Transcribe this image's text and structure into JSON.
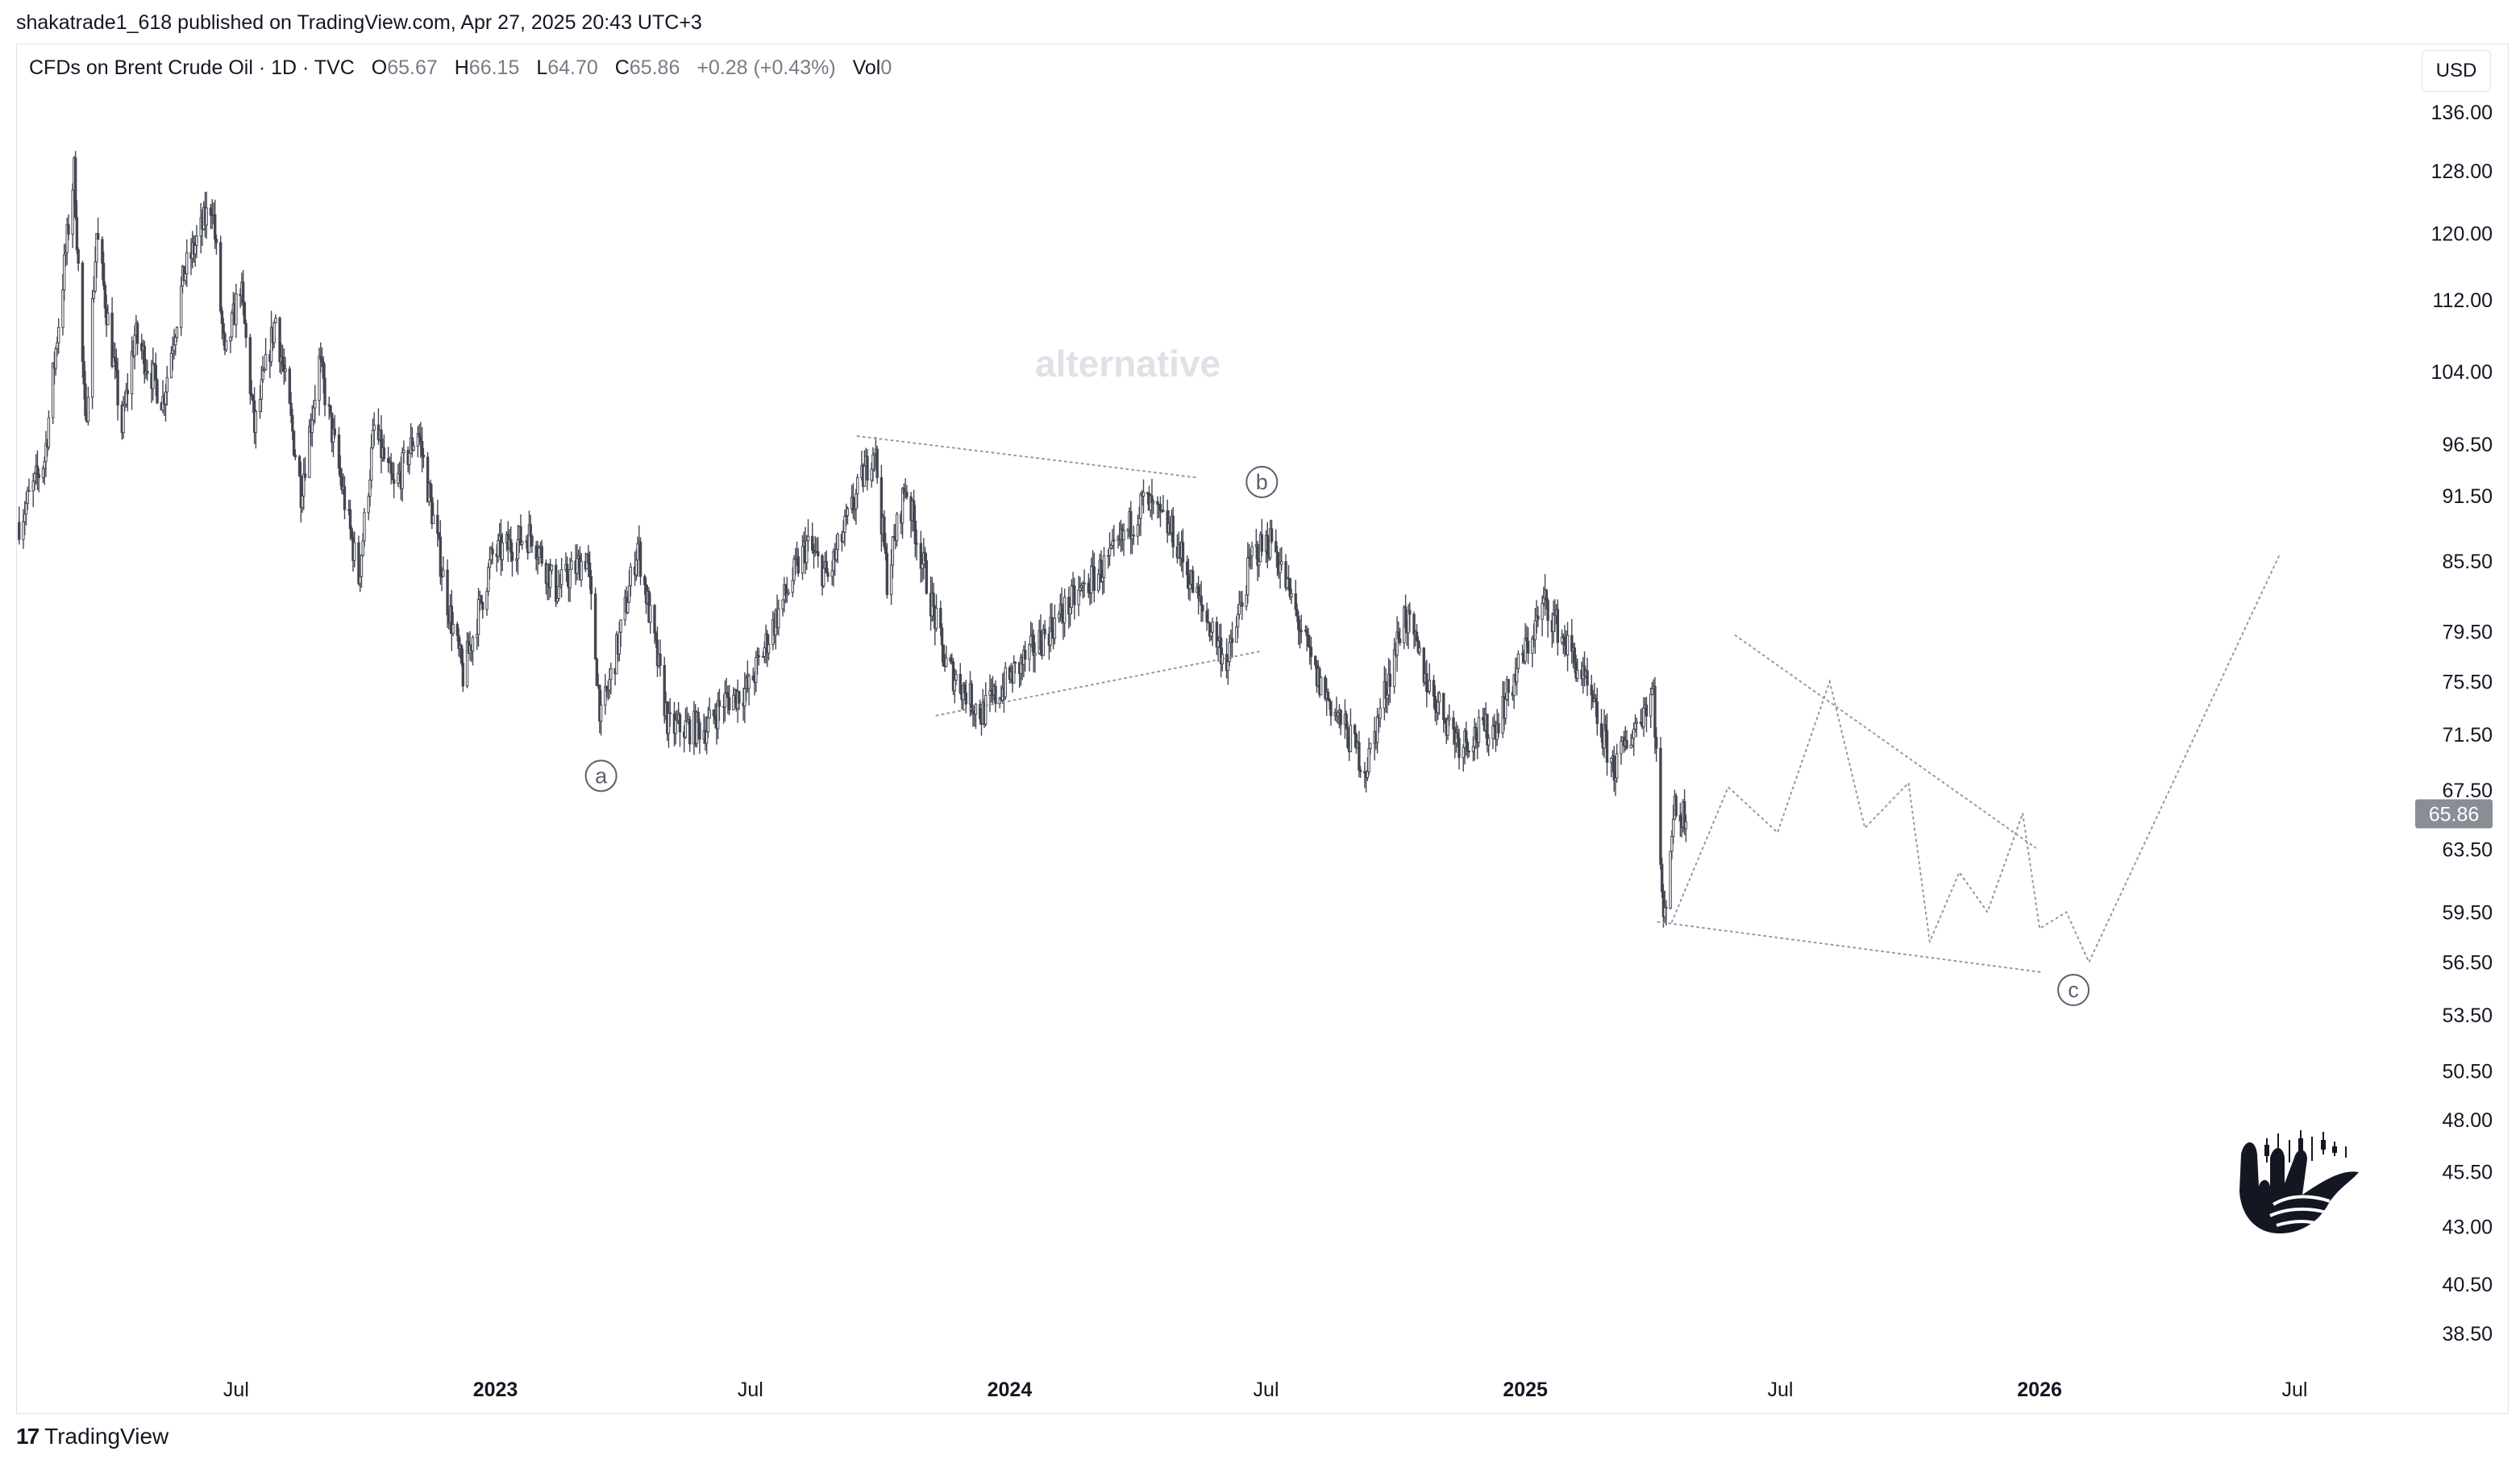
{
  "header": {
    "published": "shakatrade1_618 published on TradingView.com, Apr 27, 2025 20:43 UTC+3"
  },
  "legend": {
    "symbol": "CFDs on Brent Crude Oil · 1D · TVC",
    "open_label": "O",
    "open": "65.67",
    "high_label": "H",
    "high": "66.15",
    "low_label": "L",
    "low": "64.70",
    "close_label": "C",
    "close": "65.86",
    "change": "+0.28 (+0.43%)",
    "vol_label": "Vol",
    "vol": "0"
  },
  "currency": "USD",
  "watermark_text": "alternative",
  "footer": {
    "brand": "TradingView",
    "logo_glyph": "17"
  },
  "colors": {
    "candle": "#434651",
    "projection": "#9598a1",
    "price_badge_bg": "#8a8d96"
  },
  "chart_data": {
    "type": "candlestick",
    "timeframe": "1D",
    "y_scale": "log",
    "y_ticks": [
      136.0,
      128.0,
      120.0,
      112.0,
      104.0,
      96.5,
      91.5,
      85.5,
      79.5,
      75.5,
      71.5,
      67.5,
      63.5,
      59.5,
      56.5,
      53.5,
      50.5,
      48.0,
      45.5,
      43.0,
      40.5,
      38.5
    ],
    "x_ticks": [
      {
        "label": "Jul",
        "date": "2022-07-01",
        "bold": false
      },
      {
        "label": "2023",
        "date": "2023-01-01",
        "bold": true
      },
      {
        "label": "Jul",
        "date": "2023-07-01",
        "bold": false
      },
      {
        "label": "2024",
        "date": "2024-01-01",
        "bold": true
      },
      {
        "label": "Jul",
        "date": "2024-07-01",
        "bold": false
      },
      {
        "label": "2025",
        "date": "2025-01-01",
        "bold": true
      },
      {
        "label": "Jul",
        "date": "2025-07-01",
        "bold": false
      },
      {
        "label": "2026",
        "date": "2026-01-01",
        "bold": true
      },
      {
        "label": "Jul",
        "date": "2026-07-01",
        "bold": false
      }
    ],
    "x_range": [
      "2022-01-27",
      "2026-09-20"
    ],
    "last_price": "65.86",
    "price_path": [
      [
        "2022-01-28",
        89.0
      ],
      [
        "2022-02-15",
        95.0
      ],
      [
        "2022-03-08",
        128.0
      ],
      [
        "2022-03-16",
        98.0
      ],
      [
        "2022-03-24",
        120.0
      ],
      [
        "2022-04-11",
        98.0
      ],
      [
        "2022-04-20",
        108.0
      ],
      [
        "2022-05-10",
        101.0
      ],
      [
        "2022-05-25",
        115.0
      ],
      [
        "2022-06-14",
        124.0
      ],
      [
        "2022-06-23",
        105.0
      ],
      [
        "2022-07-04",
        114.0
      ],
      [
        "2022-07-14",
        98.0
      ],
      [
        "2022-07-29",
        110.0
      ],
      [
        "2022-08-16",
        92.0
      ],
      [
        "2022-08-29",
        105.0
      ],
      [
        "2022-09-26",
        84.0
      ],
      [
        "2022-10-07",
        98.0
      ],
      [
        "2022-10-21",
        92.0
      ],
      [
        "2022-11-07",
        98.0
      ],
      [
        "2022-11-28",
        82.0
      ],
      [
        "2022-12-09",
        76.0
      ],
      [
        "2022-12-30",
        86.0
      ],
      [
        "2023-01-27",
        88.0
      ],
      [
        "2023-02-13",
        83.0
      ],
      [
        "2023-03-07",
        86.0
      ],
      [
        "2023-03-17",
        72.5
      ],
      [
        "2023-03-31",
        79.5
      ],
      [
        "2023-04-12",
        87.0
      ],
      [
        "2023-05-04",
        72.0
      ],
      [
        "2023-05-31",
        72.0
      ],
      [
        "2023-06-12",
        74.0
      ],
      [
        "2023-06-30",
        75.0
      ],
      [
        "2023-07-17",
        80.0
      ],
      [
        "2023-08-10",
        87.0
      ],
      [
        "2023-08-25",
        84.0
      ],
      [
        "2023-09-27",
        96.5
      ],
      [
        "2023-10-06",
        84.0
      ],
      [
        "2023-10-19",
        92.5
      ],
      [
        "2023-11-16",
        77.0
      ],
      [
        "2023-12-12",
        73.0
      ],
      [
        "2024-01-10",
        77.0
      ],
      [
        "2024-02-14",
        82.0
      ],
      [
        "2024-03-15",
        86.0
      ],
      [
        "2024-04-05",
        91.0
      ],
      [
        "2024-04-26",
        88.0
      ],
      [
        "2024-05-14",
        82.0
      ],
      [
        "2024-06-04",
        77.0
      ],
      [
        "2024-06-21",
        86.0
      ],
      [
        "2024-07-05",
        87.5
      ],
      [
        "2024-08-05",
        76.0
      ],
      [
        "2024-09-10",
        69.0
      ],
      [
        "2024-10-07",
        81.0
      ],
      [
        "2024-10-25",
        75.0
      ],
      [
        "2024-11-15",
        71.0
      ],
      [
        "2024-12-10",
        72.0
      ],
      [
        "2025-01-15",
        82.0
      ],
      [
        "2025-02-10",
        76.0
      ],
      [
        "2025-03-05",
        69.0
      ],
      [
        "2025-04-02",
        75.0
      ],
      [
        "2025-04-09",
        58.5
      ],
      [
        "2025-04-16",
        66.0
      ],
      [
        "2025-04-25",
        65.86
      ]
    ],
    "wave_labels": [
      {
        "text": "a",
        "date": "2023-03-17",
        "price": 68.5
      },
      {
        "text": "b",
        "date": "2024-06-28",
        "price": 92.8
      },
      {
        "text": "c",
        "date": "2026-01-25",
        "price": 54.9
      }
    ],
    "trendlines": [
      [
        [
          "2023-09-15",
          97.3
        ],
        [
          "2024-05-14",
          93.2
        ]
      ],
      [
        [
          "2023-11-10",
          72.9
        ],
        [
          "2024-06-27",
          77.9
        ]
      ],
      [
        [
          "2025-04-05",
          58.9
        ],
        [
          "2026-01-04",
          55.9
        ]
      ],
      [
        [
          "2025-05-30",
          79.2
        ],
        [
          "2025-12-29",
          63.6
        ]
      ]
    ],
    "projection_path": [
      [
        "2025-04-15",
        58.9
      ],
      [
        "2025-05-25",
        67.7
      ],
      [
        "2025-06-29",
        64.6
      ],
      [
        "2025-08-05",
        75.5
      ],
      [
        "2025-08-30",
        64.9
      ],
      [
        "2025-09-30",
        68.0
      ],
      [
        "2025-10-15",
        57.7
      ],
      [
        "2025-11-05",
        62.0
      ],
      [
        "2025-11-25",
        59.5
      ],
      [
        "2025-12-20",
        65.9
      ],
      [
        "2026-01-01",
        58.5
      ],
      [
        "2026-01-20",
        59.5
      ],
      [
        "2026-02-05",
        56.5
      ],
      [
        "2026-06-20",
        86.0
      ]
    ]
  }
}
